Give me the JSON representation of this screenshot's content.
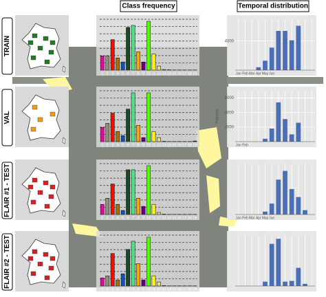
{
  "column_titles": [
    "Class frequency",
    "Temporal distribution"
  ],
  "row_labels": [
    "TRAIN",
    "VAL",
    "FLAIR #1 - TEST",
    "FLAIR #2 - TEST"
  ],
  "chart_data": [
    {
      "type": "bar",
      "categories": [
        "1",
        "2",
        "3",
        "4",
        "5",
        "6",
        "7",
        "8",
        "9",
        "10",
        "11",
        "12",
        "13",
        "14",
        "15",
        "16",
        "17",
        "18",
        "19"
      ],
      "values": [
        7,
        7,
        15,
        6,
        4,
        21,
        22,
        9,
        4,
        24,
        8,
        2,
        0.3,
        0.2,
        0.1,
        0.1,
        0.1,
        0.1,
        0.1
      ],
      "colors": [
        "#db0e9a",
        "#938e7b",
        "#f80c00",
        "#a97101",
        "#1553ae",
        "#194a26",
        "#46e483",
        "#f3a60d",
        "#660082",
        "#55ff00",
        "#fff30d",
        "#e4df7c",
        "#3de6eb",
        "#ffffff",
        "#8ab3a0",
        "#6b714f",
        "#c5dc42",
        "#9999ff",
        "#000000"
      ],
      "ylim": [
        0,
        25
      ],
      "grid": true
    },
    {
      "type": "bar",
      "categories": [
        "Jan",
        "Feb",
        "Mar",
        "Apr",
        "May",
        "Jun",
        null,
        null,
        null,
        null,
        null,
        null
      ],
      "values": [
        0,
        0,
        0,
        400,
        1300,
        3100,
        5400,
        5400,
        4100,
        6100,
        0,
        0
      ],
      "color": "#4a6fb5",
      "ylim": [
        0,
        7000
      ],
      "yticks": [
        4000
      ],
      "grid": true
    },
    {
      "type": "bar",
      "categories": [
        "1",
        "2",
        "3",
        "4",
        "5",
        "6",
        "7",
        "8",
        "9",
        "10",
        "11",
        "12",
        "13",
        "14",
        "15",
        "16",
        "17",
        "18",
        "19"
      ],
      "values": [
        7,
        9,
        14,
        5,
        3,
        16,
        24,
        8,
        2,
        24,
        5,
        2,
        0.2,
        0.1,
        0.1,
        0.1,
        0.1,
        0.1,
        0.3
      ],
      "colors": [
        "#db0e9a",
        "#938e7b",
        "#f80c00",
        "#a97101",
        "#1553ae",
        "#194a26",
        "#46e483",
        "#f3a60d",
        "#660082",
        "#55ff00",
        "#fff30d",
        "#e4df7c",
        "#3de6eb",
        "#ffffff",
        "#8ab3a0",
        "#6b714f",
        "#c5dc42",
        "#9999ff",
        "#000000"
      ],
      "ylim": [
        0,
        25
      ],
      "grid": true
    },
    {
      "type": "bar",
      "categories": [
        "Jan",
        "Feb",
        null,
        null,
        null,
        null,
        null,
        null,
        null,
        null,
        null,
        null
      ],
      "values": [
        0,
        0,
        0,
        0,
        400,
        1800,
        5400,
        3100,
        1000,
        2600,
        0,
        0
      ],
      "color": "#4a6fb5",
      "ylim": [
        0,
        7000
      ],
      "yticks": [
        2000,
        4000,
        6000
      ],
      "ylabel": "Patches",
      "grid": true
    },
    {
      "type": "bar",
      "categories": [
        "1",
        "2",
        "3",
        "4",
        "5",
        "6",
        "7",
        "8",
        "9",
        "10",
        "11",
        "12",
        "13",
        "14",
        "15",
        "16",
        "17",
        "18",
        "19"
      ],
      "values": [
        5,
        8,
        15,
        5,
        2,
        22,
        22,
        8,
        4,
        24,
        5,
        1,
        0.2,
        0.1,
        0.1,
        0.1,
        0.1,
        0.1,
        0.1
      ],
      "colors": [
        "#db0e9a",
        "#938e7b",
        "#f80c00",
        "#a97101",
        "#1553ae",
        "#194a26",
        "#46e483",
        "#f3a60d",
        "#660082",
        "#55ff00",
        "#fff30d",
        "#e4df7c",
        "#3de6eb",
        "#ffffff",
        "#8ab3a0",
        "#6b714f",
        "#c5dc42",
        "#9999ff",
        "#000000"
      ],
      "ylim": [
        0,
        25
      ],
      "grid": true
    },
    {
      "type": "bar",
      "categories": [
        "Jan",
        "Feb",
        "Mar",
        "Apr",
        "May",
        "Jun",
        null,
        null,
        null,
        null,
        null,
        null
      ],
      "values": [
        0,
        0,
        0,
        0,
        400,
        1500,
        4800,
        6000,
        3500,
        2400,
        600,
        0
      ],
      "color": "#4a6fb5",
      "ylim": [
        0,
        7000
      ],
      "grid": true
    },
    {
      "type": "bar",
      "categories": [
        "1",
        "2",
        "3",
        "4",
        "5",
        "6",
        "7",
        "8",
        "9",
        "10",
        "11",
        "12",
        "13",
        "14",
        "15",
        "16",
        "17",
        "18",
        "19"
      ],
      "values": [
        4,
        5,
        16,
        3,
        6,
        18,
        22,
        11,
        3,
        24,
        5,
        2,
        0.2,
        0.1,
        0.1,
        0.1,
        0.1,
        0.1,
        0.1
      ],
      "colors": [
        "#db0e9a",
        "#938e7b",
        "#f80c00",
        "#a97101",
        "#1553ae",
        "#194a26",
        "#46e483",
        "#f3a60d",
        "#660082",
        "#55ff00",
        "#fff30d",
        "#e4df7c",
        "#3de6eb",
        "#ffffff",
        "#8ab3a0",
        "#6b714f",
        "#c5dc42",
        "#9999ff",
        "#000000"
      ],
      "ylim": [
        0,
        25
      ],
      "grid": true
    },
    {
      "type": "bar",
      "categories": [
        null,
        null,
        null,
        null,
        null,
        null,
        null,
        null,
        null,
        null,
        null,
        null
      ],
      "values": [
        0,
        0,
        0,
        0,
        600,
        5800,
        6500,
        600,
        700,
        2500,
        300,
        0
      ],
      "color": "#4a6fb5",
      "ylim": [
        0,
        7000
      ],
      "grid": true
    }
  ]
}
